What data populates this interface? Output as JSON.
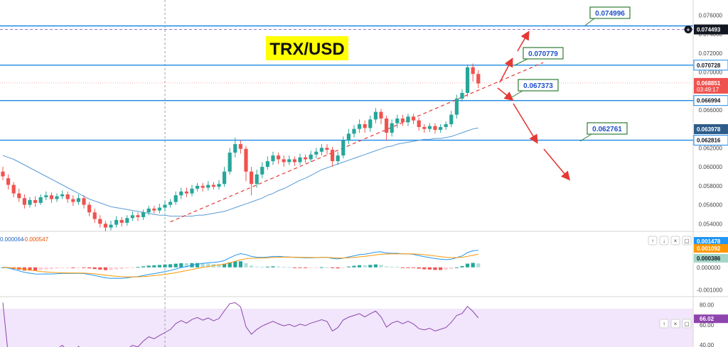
{
  "chart_data": {
    "type": "candlestick",
    "title": "TRX/USD",
    "price_axis": {
      "ylim": [
        0.0532,
        0.0776
      ],
      "ticks": [
        "0.076000",
        "0.074000",
        "0.072000",
        "0.070000",
        "0.066000",
        "0.064000",
        "0.062000",
        "0.060000",
        "0.058000",
        "0.056000",
        "0.054000"
      ]
    },
    "horizontal_levels": [
      {
        "value": 0.074493,
        "label": "0.074493",
        "style": "dashed",
        "tag": "dark"
      },
      {
        "value": 0.070728,
        "label": "0.070728",
        "style": "solid",
        "tag": "outline"
      },
      {
        "value": 0.066994,
        "label": "0.066994",
        "style": "solid",
        "tag": "outline"
      },
      {
        "value": 0.062816,
        "label": "0.062816",
        "style": "solid",
        "tag": "outline"
      }
    ],
    "price_tags": [
      {
        "label": "0.068851",
        "sub": "03:49:17",
        "color": "#ef5350",
        "value": 0.068851
      },
      {
        "label": "0.063978",
        "color": "#2e5c8a",
        "value": 0.063978
      }
    ],
    "annotations": [
      {
        "text": "0.074996"
      },
      {
        "text": "0.070779"
      },
      {
        "text": "0.067373"
      },
      {
        "text": "0.062761"
      }
    ],
    "candles": [
      [
        0.0595,
        0.059,
        0.06,
        0.0586
      ],
      [
        0.0588,
        0.0581,
        0.0592,
        0.0576
      ],
      [
        0.0581,
        0.0572,
        0.0584,
        0.0568
      ],
      [
        0.0572,
        0.0567,
        0.0577,
        0.0563
      ],
      [
        0.0567,
        0.056,
        0.0571,
        0.0556
      ],
      [
        0.056,
        0.0565,
        0.0568,
        0.0557
      ],
      [
        0.0565,
        0.0562,
        0.0569,
        0.0558
      ],
      [
        0.0562,
        0.0568,
        0.0571,
        0.056
      ],
      [
        0.0568,
        0.057,
        0.0574,
        0.0565
      ],
      [
        0.057,
        0.0566,
        0.0573,
        0.0562
      ],
      [
        0.0566,
        0.0569,
        0.0572,
        0.0563
      ],
      [
        0.0569,
        0.0571,
        0.0575,
        0.0566
      ],
      [
        0.0571,
        0.0566,
        0.0574,
        0.0562
      ],
      [
        0.0566,
        0.0563,
        0.057,
        0.0559
      ],
      [
        0.0563,
        0.0567,
        0.0571,
        0.056
      ],
      [
        0.0567,
        0.056,
        0.057,
        0.0556
      ],
      [
        0.056,
        0.0552,
        0.0563,
        0.0548
      ],
      [
        0.0552,
        0.0545,
        0.0556,
        0.0541
      ],
      [
        0.0545,
        0.054,
        0.0549,
        0.0536
      ],
      [
        0.054,
        0.0536,
        0.0543,
        0.0532
      ],
      [
        0.0536,
        0.0539,
        0.0543,
        0.0533
      ],
      [
        0.0539,
        0.0544,
        0.0548,
        0.0536
      ],
      [
        0.0544,
        0.0541,
        0.0547,
        0.0537
      ],
      [
        0.0541,
        0.0546,
        0.0549,
        0.0538
      ],
      [
        0.0546,
        0.0549,
        0.0553,
        0.0543
      ],
      [
        0.0549,
        0.0547,
        0.0552,
        0.0543
      ],
      [
        0.0547,
        0.0552,
        0.0555,
        0.0544
      ],
      [
        0.0552,
        0.0556,
        0.0559,
        0.0549
      ],
      [
        0.0556,
        0.0554,
        0.0559,
        0.0551
      ],
      [
        0.0554,
        0.0557,
        0.0561,
        0.0551
      ],
      [
        0.0557,
        0.056,
        0.0564,
        0.0553
      ],
      [
        0.056,
        0.0563,
        0.0566,
        0.0557
      ],
      [
        0.0563,
        0.057,
        0.0574,
        0.056
      ],
      [
        0.057,
        0.0574,
        0.0578,
        0.0566
      ],
      [
        0.0574,
        0.0572,
        0.0578,
        0.0568
      ],
      [
        0.0572,
        0.0577,
        0.0581,
        0.0569
      ],
      [
        0.0577,
        0.058,
        0.0583,
        0.0574
      ],
      [
        0.058,
        0.0578,
        0.0583,
        0.0574
      ],
      [
        0.0578,
        0.0581,
        0.0585,
        0.0575
      ],
      [
        0.0581,
        0.0579,
        0.0584,
        0.0576
      ],
      [
        0.0579,
        0.0582,
        0.0586,
        0.0576
      ],
      [
        0.0582,
        0.0595,
        0.06,
        0.0579
      ],
      [
        0.0595,
        0.0615,
        0.062,
        0.0592
      ],
      [
        0.0615,
        0.0624,
        0.0631,
        0.061
      ],
      [
        0.0624,
        0.0619,
        0.0628,
        0.0614
      ],
      [
        0.0619,
        0.0595,
        0.0622,
        0.0585
      ],
      [
        0.0595,
        0.0582,
        0.06,
        0.057
      ],
      [
        0.0582,
        0.0592,
        0.0597,
        0.0578
      ],
      [
        0.0592,
        0.06,
        0.0605,
        0.0588
      ],
      [
        0.06,
        0.0606,
        0.0611,
        0.0597
      ],
      [
        0.0606,
        0.0612,
        0.0616,
        0.0602
      ],
      [
        0.0612,
        0.0608,
        0.0615,
        0.0603
      ],
      [
        0.0608,
        0.0605,
        0.0612,
        0.06
      ],
      [
        0.0605,
        0.0608,
        0.0612,
        0.0602
      ],
      [
        0.0608,
        0.0605,
        0.0611,
        0.0601
      ],
      [
        0.0605,
        0.061,
        0.0614,
        0.0602
      ],
      [
        0.061,
        0.0608,
        0.0613,
        0.0604
      ],
      [
        0.0608,
        0.0613,
        0.0617,
        0.0605
      ],
      [
        0.0613,
        0.0616,
        0.062,
        0.0609
      ],
      [
        0.0616,
        0.062,
        0.0624,
        0.0612
      ],
      [
        0.062,
        0.0618,
        0.0624,
        0.0613
      ],
      [
        0.0618,
        0.0606,
        0.0621,
        0.06
      ],
      [
        0.0606,
        0.0612,
        0.0616,
        0.0602
      ],
      [
        0.0612,
        0.0628,
        0.0632,
        0.0609
      ],
      [
        0.0628,
        0.0635,
        0.064,
        0.0624
      ],
      [
        0.0635,
        0.064,
        0.0644,
        0.0631
      ],
      [
        0.064,
        0.0645,
        0.065,
        0.0636
      ],
      [
        0.0645,
        0.0641,
        0.0649,
        0.0636
      ],
      [
        0.0641,
        0.065,
        0.0654,
        0.0637
      ],
      [
        0.065,
        0.0658,
        0.0662,
        0.0646
      ],
      [
        0.0658,
        0.0651,
        0.0661,
        0.0645
      ],
      [
        0.0651,
        0.0636,
        0.0654,
        0.0628
      ],
      [
        0.0636,
        0.0646,
        0.065,
        0.0632
      ],
      [
        0.0646,
        0.0651,
        0.0655,
        0.0641
      ],
      [
        0.0651,
        0.0647,
        0.0655,
        0.0643
      ],
      [
        0.0647,
        0.0653,
        0.0656,
        0.0643
      ],
      [
        0.0653,
        0.0649,
        0.0656,
        0.0645
      ],
      [
        0.0649,
        0.0642,
        0.0652,
        0.0638
      ],
      [
        0.0642,
        0.064,
        0.0645,
        0.0636
      ],
      [
        0.064,
        0.0643,
        0.0646,
        0.0637
      ],
      [
        0.0643,
        0.0639,
        0.0646,
        0.0635
      ],
      [
        0.0639,
        0.0642,
        0.0645,
        0.0636
      ],
      [
        0.0642,
        0.0645,
        0.0648,
        0.0639
      ],
      [
        0.0645,
        0.0655,
        0.0659,
        0.0642
      ],
      [
        0.0655,
        0.0672,
        0.0676,
        0.0651
      ],
      [
        0.0672,
        0.0678,
        0.0682,
        0.0669
      ],
      [
        0.0678,
        0.0705,
        0.0708,
        0.0674
      ],
      [
        0.0705,
        0.0698,
        0.0709,
        0.069
      ],
      [
        0.0698,
        0.0688,
        0.0702,
        0.0683
      ]
    ],
    "moving_average": [
      0.0612,
      0.061,
      0.0608,
      0.0605,
      0.0602,
      0.0599,
      0.0596,
      0.0593,
      0.059,
      0.0587,
      0.0584,
      0.0581,
      0.0578,
      0.0575,
      0.0572,
      0.0569,
      0.0566,
      0.0564,
      0.0562,
      0.056,
      0.0558,
      0.0557,
      0.0556,
      0.0555,
      0.0554,
      0.0553,
      0.0552,
      0.0551,
      0.055,
      0.0549,
      0.0549,
      0.0548,
      0.0548,
      0.0548,
      0.0548,
      0.0548,
      0.0549,
      0.0549,
      0.055,
      0.0551,
      0.0552,
      0.0553,
      0.0555,
      0.0557,
      0.0559,
      0.0561,
      0.0563,
      0.0565,
      0.0567,
      0.057,
      0.0572,
      0.0575,
      0.0577,
      0.058,
      0.0583,
      0.0586,
      0.0588,
      0.0591,
      0.0594,
      0.0597,
      0.0599,
      0.0601,
      0.0603,
      0.0605,
      0.0607,
      0.0609,
      0.0611,
      0.0613,
      0.0615,
      0.0617,
      0.0619,
      0.0621,
      0.0622,
      0.0624,
      0.0625,
      0.0626,
      0.0627,
      0.0628,
      0.0629,
      0.0629,
      0.063,
      0.063,
      0.0631,
      0.0632,
      0.0634,
      0.0636,
      0.0638,
      0.064,
      0.0641
    ],
    "trendline": {
      "from": [
        31,
        0.0542
      ],
      "to": [
        100,
        0.071
      ],
      "style": "dashed"
    },
    "macd": {
      "label_left": "0.000064",
      "label_right": "-0.000547",
      "ylim": [
        -0.0013,
        0.0016
      ],
      "ticks": [
        "0.000000",
        "-0.001000"
      ],
      "tags": [
        {
          "label": "0.001478",
          "color": "#2196f3"
        },
        {
          "label": "0.001092",
          "color": "#ff9800"
        },
        {
          "label": "0.000386",
          "color": "#a5d6c8"
        }
      ]
    },
    "rsi": {
      "ylim": [
        38,
        88
      ],
      "ticks": [
        "80.00",
        "60.00",
        "40.00"
      ],
      "value_tag": "66.02",
      "overbought": 70,
      "oversold": 30
    }
  },
  "toolbar": {
    "up_icon": "arrow-up-icon",
    "down_icon": "arrow-down-icon",
    "close_icon": "close-icon",
    "restore_icon": "restore-icon",
    "plus_icon": "plus-circle-icon"
  }
}
